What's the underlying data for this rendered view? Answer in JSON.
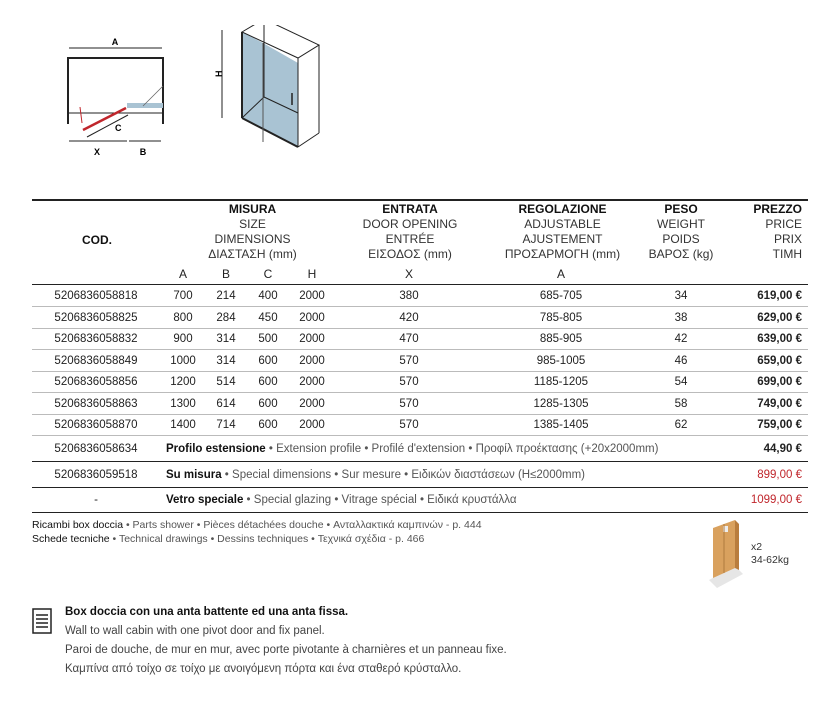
{
  "diagram": {
    "labels": [
      "A",
      "C",
      "X",
      "B",
      "H"
    ]
  },
  "table": {
    "headers": {
      "cod": "COD.",
      "misura": [
        "MISURA",
        "SIZE",
        "DIMENSIONS",
        "ΔΙΑΣΤΑΣΗ (mm)"
      ],
      "entrata": [
        "ENTRATA",
        "DOOR OPENING",
        "ENTRÉE",
        "ΕΙΣΟΔΟΣ (mm)"
      ],
      "regolazione": [
        "REGOLAZIONE",
        "ADJUSTABLE",
        "AJUSTEMENT",
        "ΠΡΟΣΑΡΜΟΓΗ (mm)"
      ],
      "peso": [
        "PESO",
        "WEIGHT",
        "POIDS",
        "ΒΑΡΟΣ (kg)"
      ],
      "prezzo": [
        "PREZZO",
        "PRICE",
        "PRIX",
        "ΤΙΜΗ"
      ],
      "sub": [
        "A",
        "B",
        "C",
        "H",
        "X",
        "A"
      ]
    },
    "rows": [
      [
        "5206836058818",
        "700",
        "214",
        "400",
        "2000",
        "380",
        "685-705",
        "34",
        "619,00 €"
      ],
      [
        "5206836058825",
        "800",
        "284",
        "450",
        "2000",
        "420",
        "785-805",
        "38",
        "629,00 €"
      ],
      [
        "5206836058832",
        "900",
        "314",
        "500",
        "2000",
        "470",
        "885-905",
        "42",
        "639,00 €"
      ],
      [
        "5206836058849",
        "1000",
        "314",
        "600",
        "2000",
        "570",
        "985-1005",
        "46",
        "659,00 €"
      ],
      [
        "5206836058856",
        "1200",
        "514",
        "600",
        "2000",
        "570",
        "1185-1205",
        "54",
        "699,00 €"
      ],
      [
        "5206836058863",
        "1300",
        "614",
        "600",
        "2000",
        "570",
        "1285-1305",
        "58",
        "749,00 €"
      ],
      [
        "5206836058870",
        "1400",
        "714",
        "600",
        "2000",
        "570",
        "1385-1405",
        "62",
        "759,00 €"
      ]
    ],
    "extras": [
      {
        "code": "5206836058634",
        "title": "Profilo estensione",
        "desc": " • Extension profile • Profilé d'extension • Προφίλ προέκτασης (+20x2000mm)",
        "price": "44,90 €"
      },
      {
        "code": "5206836059518",
        "title": "Su misura",
        "desc": " • Special dimensions • Sur mesure • Ειδικών διαστάσεων (H≤2000mm)",
        "price": "899,00 €"
      },
      {
        "code": "-",
        "title": "Vetro speciale",
        "desc": " • Special glazing • Vitrage spécial • Ειδικά κρυστάλλα",
        "price": "1099,00 €"
      }
    ]
  },
  "footer": {
    "line1_title": "Ricambi box doccia",
    "line1_rest": " • Parts shower • Pièces détachées douche • Ανταλλακτικά καμπινών - p. 444",
    "line2_title": "Schede tecniche",
    "line2_rest": " • Technical drawings • Dessins techniques • Τεχνικά σχέδια - p. 466",
    "package_qty": "x2",
    "package_weight": "34-62kg"
  },
  "description": {
    "title": "Box doccia con una anta battente ed una anta fissa.",
    "en": "Wall to wall cabin with one pivot door and fix panel.",
    "fr": "Paroi de douche, de mur en mur, avec porte pivotante à charnières et un panneau fixe.",
    "gr": "Καμπίνα από τοίχο σε τοίχο με ανοιγόμενη πόρτα και ένα σταθερό κρύσταλλο."
  },
  "colors": {
    "accent_red": "#c0262c",
    "glass": "#a9c3d3"
  }
}
